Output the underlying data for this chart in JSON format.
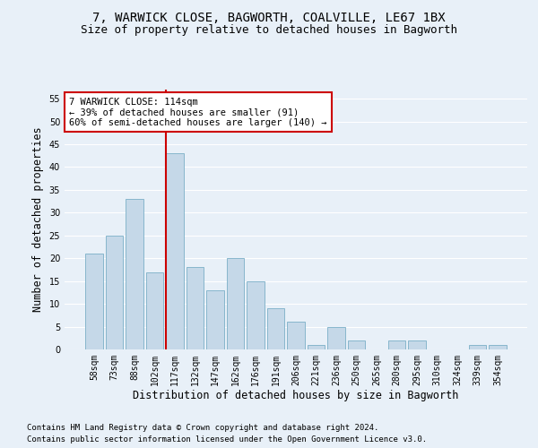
{
  "title": "7, WARWICK CLOSE, BAGWORTH, COALVILLE, LE67 1BX",
  "subtitle": "Size of property relative to detached houses in Bagworth",
  "xlabel": "Distribution of detached houses by size in Bagworth",
  "ylabel": "Number of detached properties",
  "bar_labels": [
    "58sqm",
    "73sqm",
    "88sqm",
    "102sqm",
    "117sqm",
    "132sqm",
    "147sqm",
    "162sqm",
    "176sqm",
    "191sqm",
    "206sqm",
    "221sqm",
    "236sqm",
    "250sqm",
    "265sqm",
    "280sqm",
    "295sqm",
    "310sqm",
    "324sqm",
    "339sqm",
    "354sqm"
  ],
  "bar_values": [
    21,
    25,
    33,
    17,
    43,
    18,
    13,
    20,
    15,
    9,
    6,
    1,
    5,
    2,
    0,
    2,
    2,
    0,
    0,
    1,
    1
  ],
  "bar_color": "#c5d8e8",
  "bar_edge_color": "#7aafc7",
  "background_color": "#e8f0f8",
  "grid_color": "#ffffff",
  "redline_color": "#cc0000",
  "annotation_text": "7 WARWICK CLOSE: 114sqm\n← 39% of detached houses are smaller (91)\n60% of semi-detached houses are larger (140) →",
  "annotation_box_color": "#ffffff",
  "annotation_box_edge": "#cc0000",
  "ylim": [
    0,
    57
  ],
  "yticks": [
    0,
    5,
    10,
    15,
    20,
    25,
    30,
    35,
    40,
    45,
    50,
    55
  ],
  "footer1": "Contains HM Land Registry data © Crown copyright and database right 2024.",
  "footer2": "Contains public sector information licensed under the Open Government Licence v3.0.",
  "title_fontsize": 10,
  "subtitle_fontsize": 9,
  "axis_label_fontsize": 8.5,
  "tick_fontsize": 7,
  "annotation_fontsize": 7.5,
  "footer_fontsize": 6.5
}
